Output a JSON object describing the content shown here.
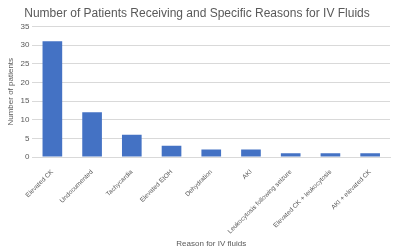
{
  "chart_data": {
    "type": "bar",
    "title": "Number of Patients Receiving and Specific Reasons for IV Fluids",
    "x_label": "Reason for IV fluids",
    "y_label": "Number of patients",
    "categories": [
      "Elevated CK",
      "Undocumented",
      "Tachycardia",
      "Elevated EtOH",
      "Dehydration",
      "AKI",
      "Leukocytosis following seizure",
      "Elevated CK + leukocytosis",
      "AKI + elevated CK"
    ],
    "values": [
      31,
      12,
      6,
      3,
      2,
      2,
      1,
      1,
      1
    ],
    "color": "#4472c4",
    "ylim": [
      0,
      35
    ],
    "yticks": [
      0,
      5,
      10,
      15,
      20,
      25,
      30,
      35
    ],
    "grid": true
  }
}
